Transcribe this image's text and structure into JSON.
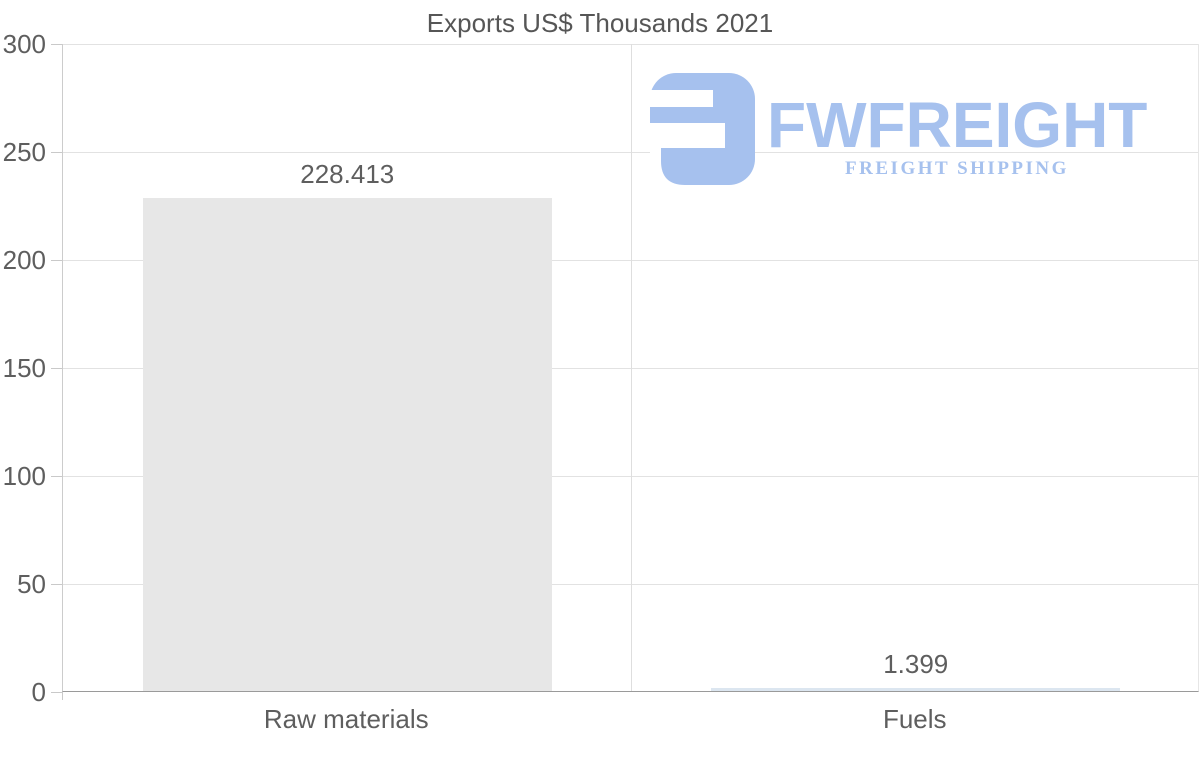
{
  "chart_data": {
    "type": "bar",
    "title": "Exports US$ Thousands 2021",
    "categories": [
      "Raw materials",
      "Fuels"
    ],
    "values": [
      228.413,
      1.399
    ],
    "value_labels": [
      "228.413",
      "1.399"
    ],
    "xlabel": "",
    "ylabel": "",
    "ylim": [
      0,
      300
    ],
    "yticks": [
      0,
      50,
      100,
      150,
      200,
      250,
      300
    ],
    "grid": true,
    "legend_position": "none",
    "bar_colors": [
      "#e7e7e7",
      "#dce6f0"
    ],
    "bar_width_fraction": 0.72
  },
  "logo": {
    "brand": "FWFREIGHT",
    "tagline": "FREIGHT SHIPPING",
    "color": "#a6c1ee"
  },
  "colors": {
    "title_text": "#565656",
    "axis_text": "#5e5e5e",
    "gridline": "#e2e2e2",
    "x_axis_line": "#9a9a9a",
    "y_axis_line": "#c9c9c9",
    "bar_raw_materials": "#e7e7e7",
    "bar_fuels": "#dce6f0"
  }
}
